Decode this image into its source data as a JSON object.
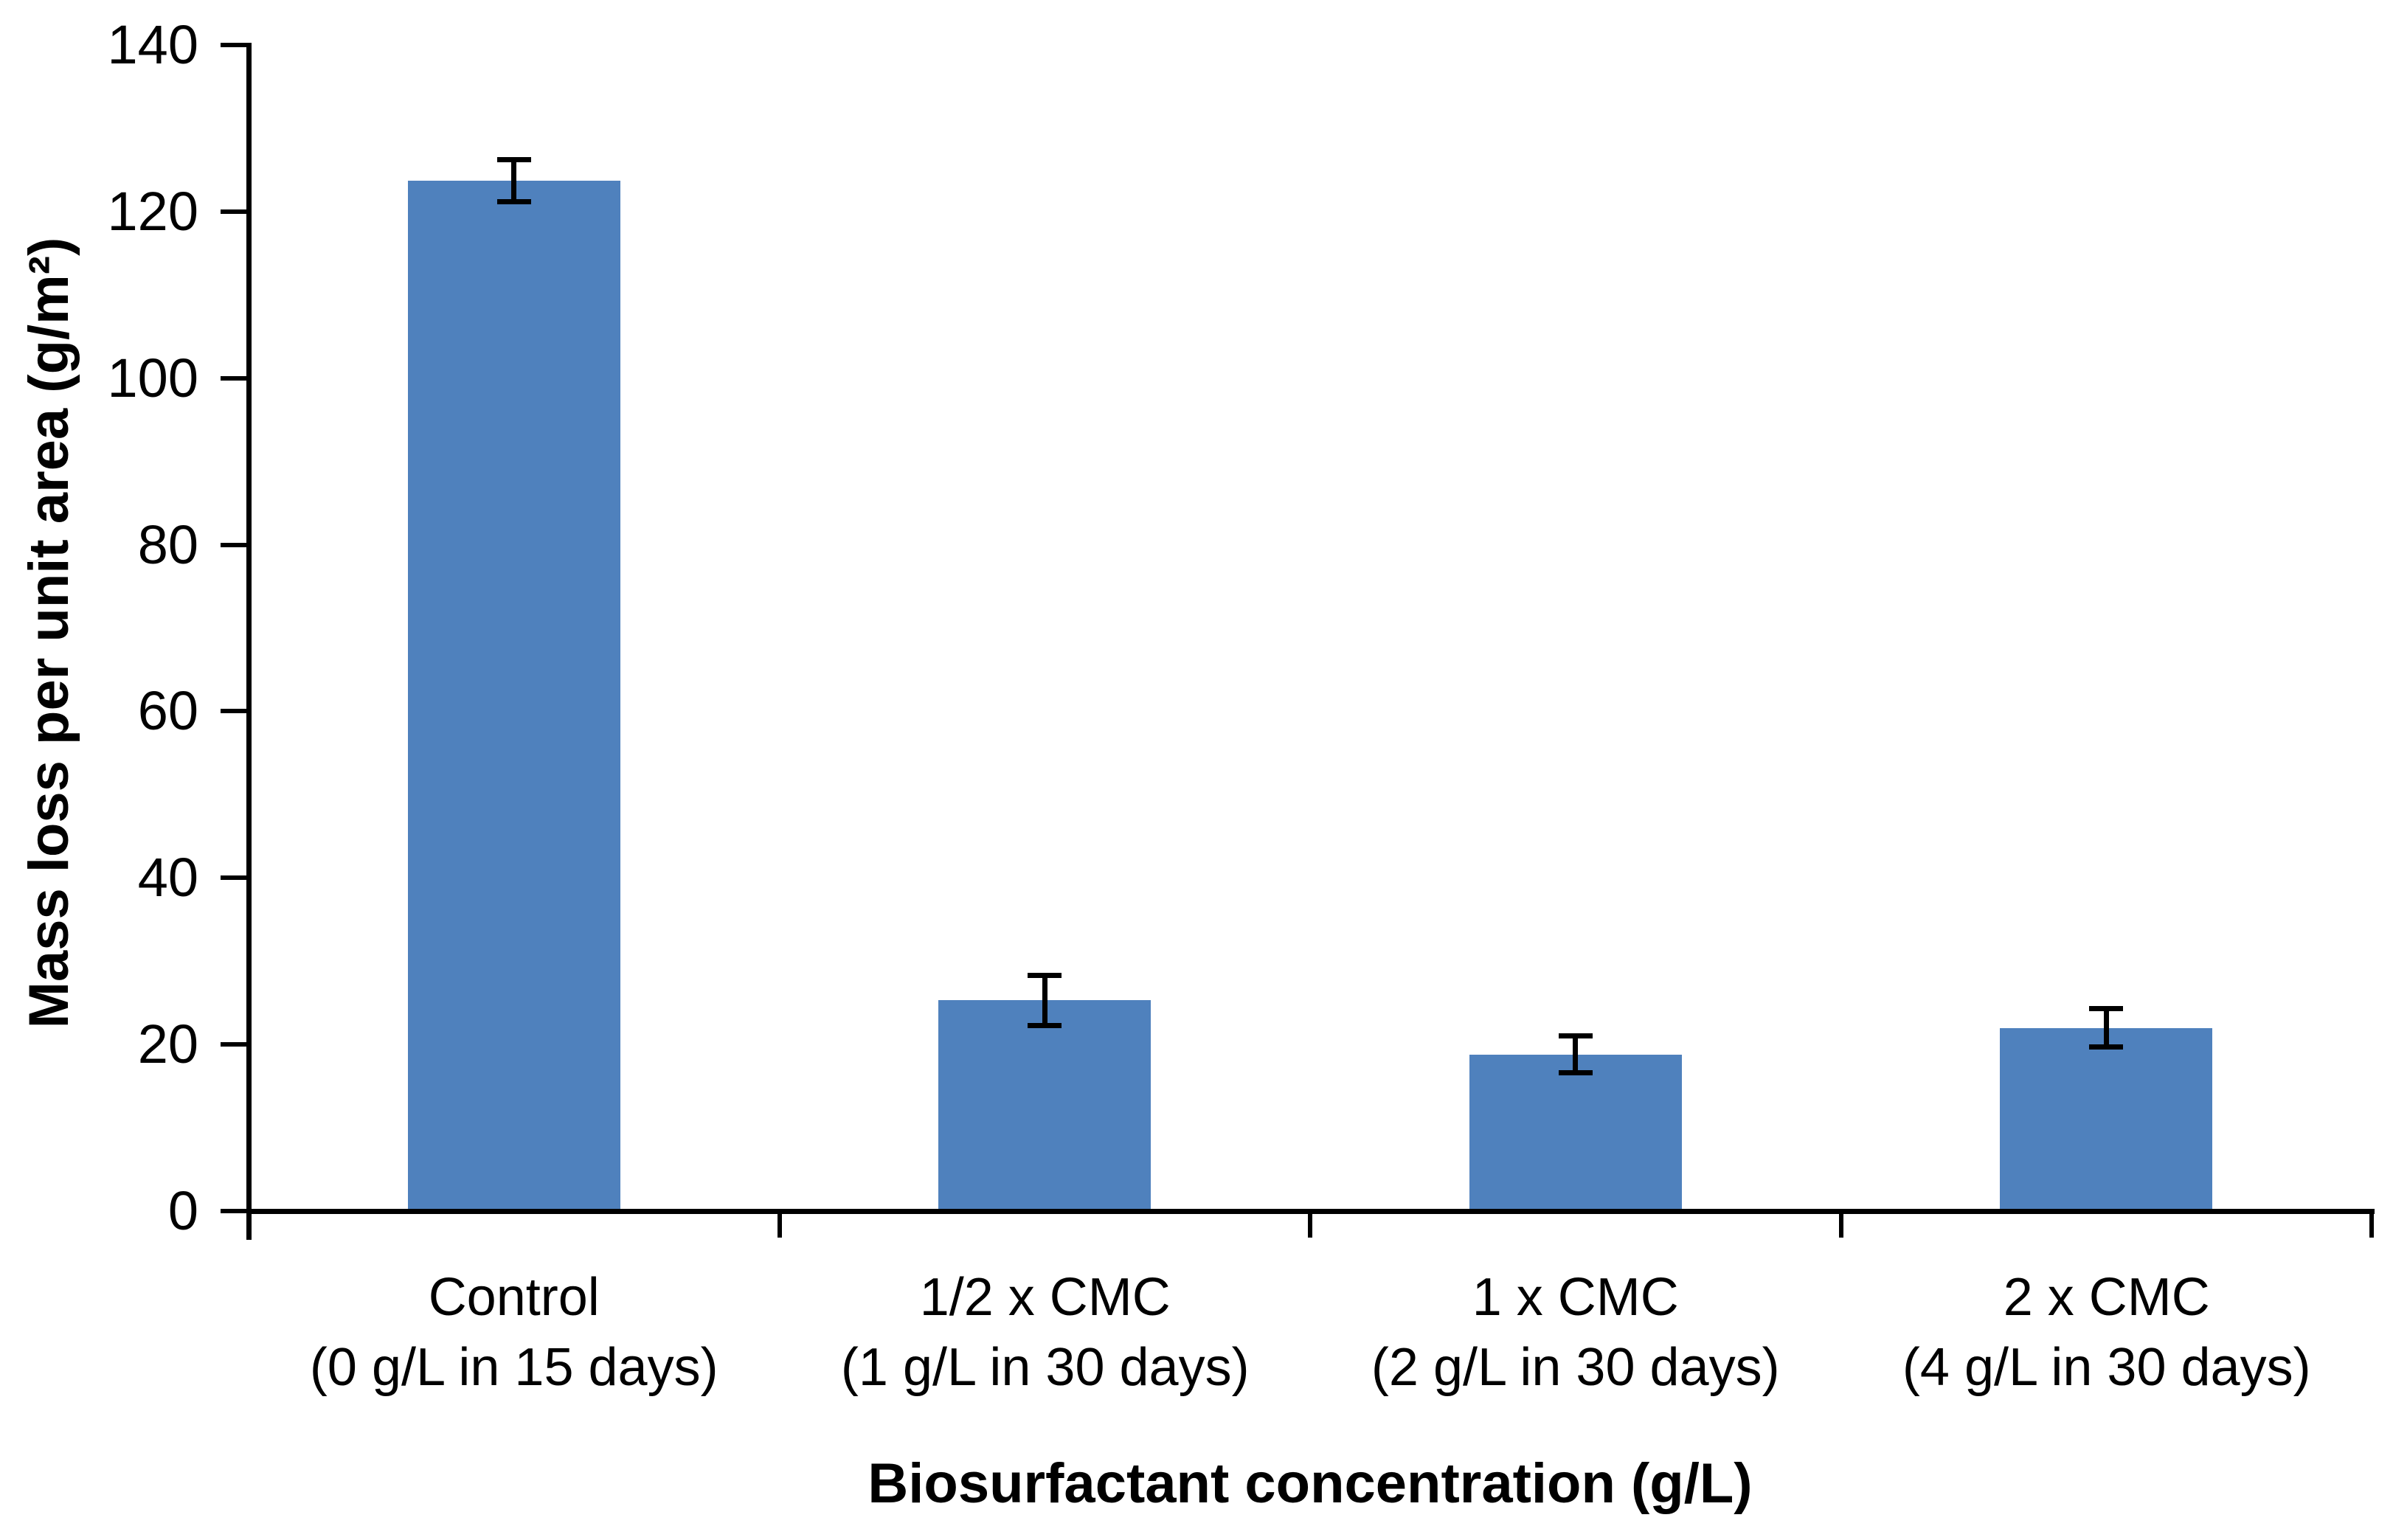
{
  "chart_data": {
    "type": "bar",
    "title": "",
    "categories": [
      "Control",
      "1/2 x CMC",
      "1 x CMC",
      "2 x CMC"
    ],
    "category_sublabels": [
      "(0 g/L in 15 days)",
      "(1 g/L in 30 days)",
      "(2 g/L in 30 days)",
      "(4 g/L in 30 days)"
    ],
    "values": [
      123.7,
      25.3,
      18.8,
      22.0
    ],
    "error_bars": [
      2.5,
      3.0,
      2.2,
      2.3
    ],
    "xlabel": "Biosurfactant concentration (g/L)",
    "ylabel": "Mass loss per unit area (g/m²)",
    "ylim": [
      0,
      140
    ],
    "ytick_step": 20,
    "ytick_labels": [
      "0",
      "20",
      "40",
      "60",
      "80",
      "100",
      "120",
      "140"
    ],
    "bar_color": "#4F81BD",
    "error_color": "#000000",
    "axis_color": "#000000",
    "background_color": "#FFFFFF",
    "grid": "off",
    "legend": "none"
  }
}
